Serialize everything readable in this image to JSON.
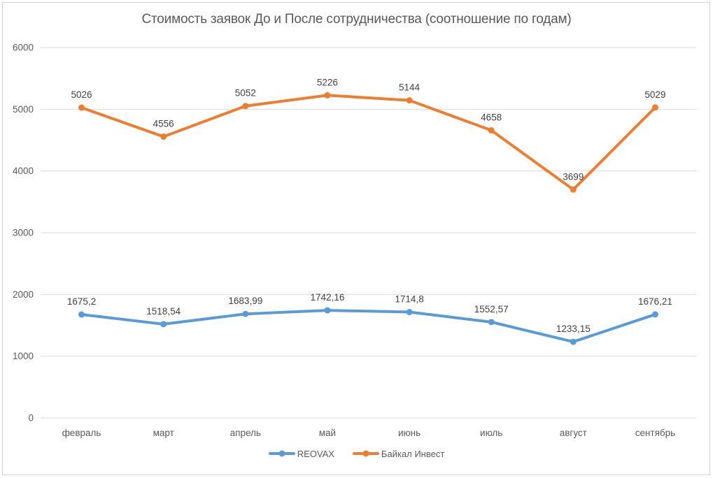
{
  "chart_data": {
    "type": "line",
    "title": "Стоимость заявок До и После сотрудничества (соотношение по годам)",
    "categories": [
      "февраль",
      "март",
      "апрель",
      "май",
      "июнь",
      "июль",
      "август",
      "сентябрь"
    ],
    "series": [
      {
        "name": "REOVAX",
        "color": "#5B9BD5",
        "values": [
          1675.2,
          1518.54,
          1683.99,
          1742.16,
          1714.8,
          1552.57,
          1233.15,
          1676.21
        ],
        "labels": [
          "1675,2",
          "1518,54",
          "1683,99",
          "1742,16",
          "1714,8",
          "1552,57",
          "1233,15",
          "1676,21"
        ]
      },
      {
        "name": "Байкал Инвест",
        "color": "#ED7D31",
        "values": [
          5026,
          4556,
          5052,
          5226,
          5144,
          4658,
          3699,
          5029
        ],
        "labels": [
          "5026",
          "4556",
          "5052",
          "5226",
          "5144",
          "4658",
          "3699",
          "5029"
        ]
      }
    ],
    "ylim": [
      0,
      6000
    ],
    "yticks": [
      0,
      1000,
      2000,
      3000,
      4000,
      5000,
      6000
    ],
    "ytick_labels": [
      "0",
      "1000",
      "2000",
      "3000",
      "4000",
      "5000",
      "6000"
    ],
    "grid": true,
    "legend_position": "bottom",
    "marker": "circle",
    "colors": {
      "grid_line": "#D9D9D9",
      "axis_text": "#595959",
      "data_label_text": "#404040",
      "title_text": "#595959",
      "frame_border": "#D2D2D2",
      "background": "#FFFFFF"
    }
  }
}
